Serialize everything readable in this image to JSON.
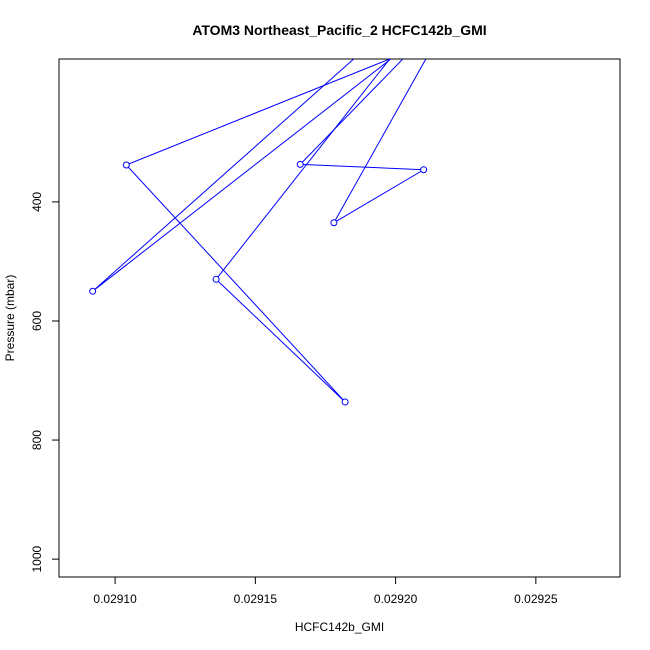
{
  "chart_data": {
    "type": "line",
    "title": "ATOM3 Northeast_Pacific_2 HCFC142b_GMI",
    "xlabel": "HCFC142b_GMI",
    "ylabel": "Pressure (mbar)",
    "xlim": [
      0.02908,
      0.02928
    ],
    "ylim": [
      1030,
      160
    ],
    "y_reversed": true,
    "grid": false,
    "x_ticks": [
      0.0291,
      0.02915,
      0.0292,
      0.02925
    ],
    "x_tick_labels": [
      "0.02910",
      "0.02915",
      "0.02920",
      "0.02925"
    ],
    "y_ticks": [
      400,
      600,
      800,
      1000
    ],
    "y_tick_labels": [
      "400",
      "600",
      "800",
      "1000"
    ],
    "series_color": "#0000ff",
    "series": [
      {
        "x": [
          0.02924,
          0.029178,
          0.02921,
          0.029166,
          0.029216,
          0.029092,
          0.029228,
          0.029136,
          0.029182,
          0.029104,
          0.029277
        ],
        "y": [
          -85,
          435,
          346,
          337,
          95,
          550,
          -20,
          530,
          736,
          338,
          10
        ],
        "markers": [
          false,
          true,
          true,
          true,
          false,
          true,
          false,
          true,
          true,
          true,
          false
        ]
      }
    ]
  }
}
